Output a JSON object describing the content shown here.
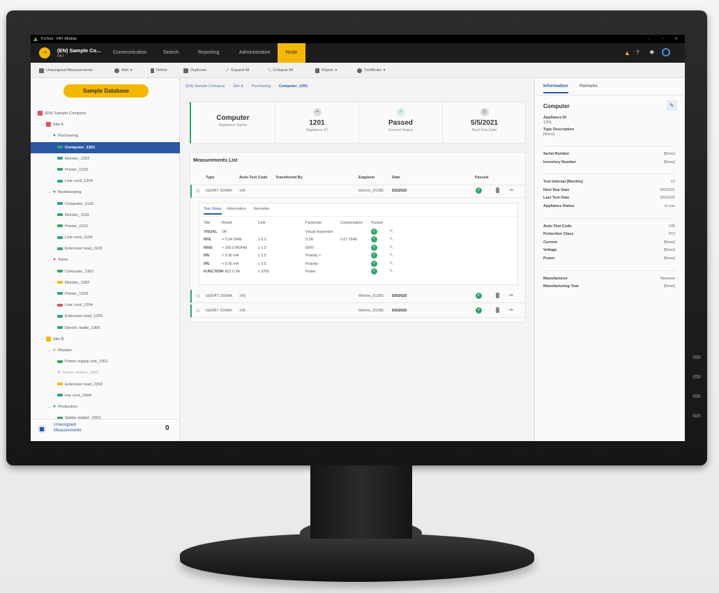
{
  "window": {
    "title": "TruTest - PAT Module"
  },
  "header": {
    "company": "(EN) Sample Co...",
    "module": "PAT",
    "tabs": [
      {
        "label": "Communication"
      },
      {
        "label": "Search"
      },
      {
        "label": "Reporting"
      },
      {
        "label": "Administration"
      },
      {
        "label": "Node",
        "active": true
      }
    ],
    "icons": [
      "warning-icon",
      "help-icon",
      "gear-icon",
      "user-icon"
    ],
    "accent": "#f5b800"
  },
  "toolbar": {
    "unassigned": "Unassigned Measurements",
    "add": "Add",
    "delete": "Delete",
    "duplicate": "Duplicate",
    "expand": "Expand All",
    "collapse": "Collapse All",
    "report": "Report",
    "certificate": "Certificate"
  },
  "sidebar": {
    "database": "Sample Database",
    "tree": [
      {
        "label": "(EN) Sample Company",
        "level": 0,
        "icon": "company-icon",
        "color": "#e05060"
      },
      {
        "label": "Site A",
        "level": 1,
        "icon": "building-icon",
        "color": "#e05060"
      },
      {
        "label": "Purchasing",
        "level": 2,
        "icon": "location-pin-icon",
        "color": "#2ea86a"
      },
      {
        "label": "Computer_1201",
        "level": 3,
        "icon": "plug-icon",
        "color": "#2ea86a",
        "selected": true
      },
      {
        "label": "Monitor_1202",
        "level": 3,
        "icon": "plug-icon",
        "color": "#2ea86a"
      },
      {
        "label": "Printer_1203",
        "level": 3,
        "icon": "plug-icon",
        "color": "#2ea86a"
      },
      {
        "label": "Line cord_1204",
        "level": 3,
        "icon": "plug-icon",
        "color": "#2ea86a"
      },
      {
        "label": "Bookkeeping",
        "level": 2,
        "icon": "location-pin-icon",
        "color": "#2ea86a"
      },
      {
        "label": "Computer_1101",
        "level": 3,
        "icon": "plug-icon",
        "color": "#2ea86a"
      },
      {
        "label": "Monitor_1102",
        "level": 3,
        "icon": "plug-icon",
        "color": "#2ea86a"
      },
      {
        "label": "Printer_1103",
        "level": 3,
        "icon": "plug-icon",
        "color": "#2ea86a"
      },
      {
        "label": "Line cord_1104",
        "level": 3,
        "icon": "plug-icon",
        "color": "#2ea86a"
      },
      {
        "label": "Extension lead_1105",
        "level": 3,
        "icon": "plug-icon",
        "color": "#2ea86a"
      },
      {
        "label": "Sales",
        "level": 2,
        "icon": "location-pin-icon",
        "color": "#e05060"
      },
      {
        "label": "Computer_1301",
        "level": 3,
        "icon": "plug-icon",
        "color": "#2ea86a"
      },
      {
        "label": "Monitor_1302",
        "level": 3,
        "icon": "plug-icon",
        "color": "#f5b800"
      },
      {
        "label": "Printer_1303",
        "level": 3,
        "icon": "plug-icon",
        "color": "#2ea86a"
      },
      {
        "label": "Line cord_1304",
        "level": 3,
        "icon": "plug-icon",
        "color": "#e05060"
      },
      {
        "label": "Extension lead_1305",
        "level": 3,
        "icon": "plug-icon",
        "color": "#2ea86a"
      },
      {
        "label": "Electric kettle_1306",
        "level": 3,
        "icon": "plug-icon",
        "color": "#2ea86a"
      },
      {
        "label": "Site B",
        "level": 1,
        "icon": "building-icon",
        "color": "#f5b800"
      },
      {
        "label": "Repairs",
        "level": 2,
        "icon": "location-pin-icon",
        "color": "#f5b800"
      },
      {
        "label": "Power supply unit_2301",
        "level": 3,
        "icon": "plug-icon",
        "color": "#2ea86a"
      },
      {
        "label": "Solder station_2302",
        "level": 3,
        "icon": "disabled-icon",
        "color": "#999999",
        "disabled": true
      },
      {
        "label": "Extension lead_2303",
        "level": 3,
        "icon": "plug-icon",
        "color": "#f5b800"
      },
      {
        "label": "line cord_2304",
        "level": 3,
        "icon": "plug-icon",
        "color": "#2ea86a"
      },
      {
        "label": "Production",
        "level": 2,
        "icon": "location-pin-icon",
        "color": "#2ea86a"
      },
      {
        "label": "Solder station_2201",
        "level": 3,
        "icon": "plug-icon",
        "color": "#2ea86a"
      }
    ],
    "footer": {
      "label_line1": "Unassigned",
      "label_line2": "Measurements",
      "count": "0"
    }
  },
  "breadcrumb": [
    "(EN) Sample Company",
    "Site A",
    "Purchasing",
    "Computer_1201"
  ],
  "summary": [
    {
      "value": "Computer",
      "label": "Appliance Name"
    },
    {
      "value": "1201",
      "label": "Appliance ID",
      "icon": "plug-icon"
    },
    {
      "value": "Passed",
      "label": "Current Status",
      "icon": "check-icon"
    },
    {
      "value": "5/5/2021",
      "label": "Next Due Date",
      "icon": "clock-icon"
    }
  ],
  "measurements": {
    "title": "Measurements List",
    "columns": [
      "Type",
      "Auto-Test Code",
      "Transferred By",
      "Engineer",
      "Date",
      "Passed"
    ],
    "rows": [
      {
        "type": "GERÄT 200MA",
        "code": "145",
        "transferred": "",
        "engineer": "Wehrle_91288",
        "date": "5/5/2020",
        "passed": true,
        "expanded": true
      },
      {
        "type": "GERÄT 200MA",
        "code": "145",
        "transferred": "",
        "engineer": "Wehrle_91288",
        "date": "5/5/2020",
        "passed": true
      },
      {
        "type": "GERÄT 200MA",
        "code": "145",
        "transferred": "",
        "engineer": "Wehrle_91288",
        "date": "5/5/2020",
        "passed": true
      }
    ],
    "detail": {
      "tabs": [
        "Test Steps",
        "Information",
        "Remarks"
      ],
      "columns": [
        "Title",
        "Result",
        "Limit",
        "Parameter",
        "Compensation",
        "Passed"
      ],
      "steps": [
        [
          "VISUAL",
          "OK",
          "",
          "Visual Inspection",
          ""
        ],
        [
          "RPE",
          "= 0.04 OHM",
          "≤ 0.3",
          "0.2A",
          "0.07 OHM"
        ],
        [
          "RINS",
          "> 100.0 MOHM",
          "≥ 1.0",
          "500V",
          ""
        ],
        [
          "IPE",
          "< 0.05 mA",
          "≤ 3.5",
          "Polarity +",
          ""
        ],
        [
          "IPE",
          "< 0.05 mA",
          "≤ 3.5",
          "Polarity -",
          ""
        ],
        [
          "FUNCTION",
          "= 822.0 VA",
          "≤ 3700",
          "Power",
          ""
        ]
      ]
    }
  },
  "info": {
    "tabs": [
      "Information",
      "Remarks"
    ],
    "title": "Computer",
    "appliance_id_label": "Appliance ID",
    "appliance_id": "1201",
    "type_label": "Type Description",
    "type": "[None]",
    "groups": [
      [
        [
          "Serial Number",
          "[None]"
        ],
        [
          "Inventory Number",
          "[None]"
        ]
      ],
      [
        [
          "Test Interval [Months]",
          "12"
        ],
        [
          "Next Due Date",
          "5/5/2021"
        ],
        [
          "Last Test Date",
          "5/5/2020"
        ],
        [
          "Appliance Status",
          "In use"
        ]
      ],
      [
        [
          "Auto-Test Code",
          "145"
        ],
        [
          "Protection Class",
          "PCI"
        ],
        [
          "Current",
          "[None]"
        ],
        [
          "Voltage",
          "[None]"
        ],
        [
          "Power",
          "[None]"
        ]
      ],
      [
        [
          "Manufacturer",
          "Noname"
        ],
        [
          "Manufacturing Year",
          "[None]"
        ]
      ]
    ]
  }
}
